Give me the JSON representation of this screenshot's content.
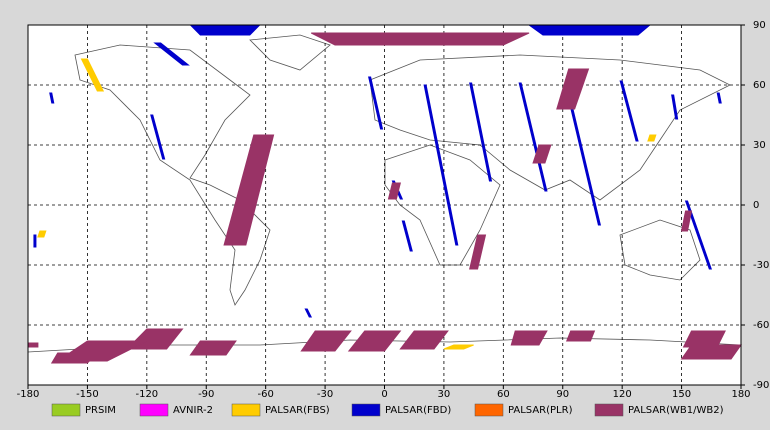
{
  "chart_data": {
    "type": "swath_map",
    "xlim": [
      -180,
      180
    ],
    "ylim": [
      -90,
      90
    ],
    "xticks": [
      -180,
      -150,
      -120,
      -90,
      -60,
      -30,
      0,
      30,
      60,
      90,
      120,
      150,
      180
    ],
    "yticks": [
      -90,
      -60,
      -30,
      0,
      30,
      60,
      90
    ],
    "grid": true,
    "series": [
      {
        "name": "PRSIM",
        "color": "#99cc22",
        "swaths": []
      },
      {
        "name": "AVNIR-2",
        "color": "#ff00ff",
        "swaths": []
      },
      {
        "name": "PALSAR(FBS)",
        "color": "#ffcc00",
        "swaths": [
          {
            "lon": [
              -153,
              -150,
              -142,
              -145
            ],
            "lat": [
              73,
              73,
              57,
              57
            ]
          },
          {
            "lon": [
              -174,
              -171,
              -172,
              -175
            ],
            "lat": [
              -13,
              -13,
              -16,
              -16
            ]
          },
          {
            "lon": [
              35,
              45,
              40,
              30
            ],
            "lat": [
              -70,
              -70,
              -72,
              -72
            ]
          },
          {
            "lon": [
              134,
              137,
              136,
              133
            ],
            "lat": [
              35,
              35,
              32,
              32
            ]
          }
        ]
      },
      {
        "name": "PALSAR(FBD)",
        "color": "#0000cc",
        "swaths": [
          {
            "lon": [
              -98,
              -63,
              -68,
              -93
            ],
            "lat": [
              90,
              90,
              85,
              85
            ]
          },
          {
            "lon": [
              73,
              134,
              128,
              80
            ],
            "lat": [
              90,
              90,
              85,
              85
            ]
          },
          {
            "lon": [
              -116,
              -113,
              -99,
              -102
            ],
            "lat": [
              81,
              81,
              70,
              70
            ]
          },
          {
            "lon": [
              -169,
              -168,
              -167,
              -168
            ],
            "lat": [
              56,
              56,
              51,
              51
            ]
          },
          {
            "lon": [
              -118,
              -117,
              -111,
              -112
            ],
            "lat": [
              45,
              45,
              23,
              23
            ]
          },
          {
            "lon": [
              -8,
              -7,
              -1,
              -2
            ],
            "lat": [
              64,
              64,
              38,
              38
            ]
          },
          {
            "lon": [
              4,
              5,
              9,
              8
            ],
            "lat": [
              12,
              12,
              3,
              3
            ]
          },
          {
            "lon": [
              20,
              21,
              37,
              36
            ],
            "lat": [
              60,
              60,
              -20,
              -20
            ]
          },
          {
            "lon": [
              43,
              44,
              54,
              53
            ],
            "lat": [
              61,
              61,
              12,
              12
            ]
          },
          {
            "lon": [
              68,
              69,
              82,
              81
            ],
            "lat": [
              61,
              61,
              7,
              7
            ]
          },
          {
            "lon": [
              92,
              93,
              109,
              108
            ],
            "lat": [
              57,
              57,
              -10,
              -10
            ]
          },
          {
            "lon": [
              119,
              120,
              128,
              127
            ],
            "lat": [
              62,
              62,
              32,
              32
            ]
          },
          {
            "lon": [
              145,
              146,
              148,
              147
            ],
            "lat": [
              55,
              55,
              43,
              43
            ]
          },
          {
            "lon": [
              152,
              153,
              165,
              164
            ],
            "lat": [
              2,
              2,
              -32,
              -32
            ]
          },
          {
            "lon": [
              9,
              10,
              14,
              13
            ],
            "lat": [
              -8,
              -8,
              -23,
              -23
            ]
          },
          {
            "lon": [
              -177,
              -176,
              -176,
              -177
            ],
            "lat": [
              -15,
              -15,
              -21,
              -21
            ]
          },
          {
            "lon": [
              -40,
              -39,
              -37,
              -38
            ],
            "lat": [
              -52,
              -52,
              -56,
              -56
            ]
          },
          {
            "lon": [
              168,
              169,
              170,
              169
            ],
            "lat": [
              56,
              56,
              51,
              51
            ]
          }
        ]
      },
      {
        "name": "PALSAR(PLR)",
        "color": "#ff6600",
        "swaths": []
      },
      {
        "name": "PALSAR(WB1/WB2)",
        "color": "#993366",
        "swaths": [
          {
            "lon": [
              -37,
              73,
              60,
              -25
            ],
            "lat": [
              86,
              86,
              80,
              80
            ]
          },
          {
            "lon": [
              -81,
              -70,
              -56,
              -66
            ],
            "lat": [
              -20,
              -20,
              35,
              35
            ]
          },
          {
            "lon": [
              87,
              96,
              103,
              93
            ],
            "lat": [
              48,
              48,
              68,
              68
            ]
          },
          {
            "lon": [
              78,
              84,
              81,
              75
            ],
            "lat": [
              30,
              30,
              21,
              21
            ]
          },
          {
            "lon": [
              47,
              51,
              47,
              43
            ],
            "lat": [
              -15,
              -15,
              -32,
              -32
            ]
          },
          {
            "lon": [
              152,
              155,
              153,
              150
            ],
            "lat": [
              -3,
              -3,
              -13,
              -13
            ]
          },
          {
            "lon": [
              4,
              8,
              6,
              2
            ],
            "lat": [
              11,
              11,
              3,
              3
            ]
          },
          {
            "lon": [
              -120,
              -102,
              -110,
              -130
            ],
            "lat": [
              -62,
              -62,
              -72,
              -72
            ]
          },
          {
            "lon": [
              -93,
              -75,
              -80,
              -98
            ],
            "lat": [
              -68,
              -68,
              -75,
              -75
            ]
          },
          {
            "lon": [
              -150,
              -120,
              -140,
              -165
            ],
            "lat": [
              -68,
              -68,
              -78,
              -78
            ]
          },
          {
            "lon": [
              -165,
              -145,
              -150,
              -168
            ],
            "lat": [
              -74,
              -74,
              -79,
              -79
            ]
          },
          {
            "lon": [
              -35,
              -17,
              -25,
              -42
            ],
            "lat": [
              -63,
              -63,
              -73,
              -73
            ]
          },
          {
            "lon": [
              -10,
              8,
              0,
              -18
            ],
            "lat": [
              -63,
              -63,
              -73,
              -73
            ]
          },
          {
            "lon": [
              15,
              32,
              25,
              8
            ],
            "lat": [
              -63,
              -63,
              -72,
              -72
            ]
          },
          {
            "lon": [
              66,
              82,
              78,
              64
            ],
            "lat": [
              -63,
              -63,
              -70,
              -70
            ]
          },
          {
            "lon": [
              94,
              106,
              104,
              92
            ],
            "lat": [
              -63,
              -63,
              -68,
              -68
            ]
          },
          {
            "lon": [
              155,
              172,
              168,
              151
            ],
            "lat": [
              -63,
              -63,
              -71,
              -71
            ]
          },
          {
            "lon": [
              155,
              180,
              175,
              150
            ],
            "lat": [
              -70,
              -70,
              -77,
              -77
            ]
          },
          {
            "lon": [
              -180,
              -175,
              -175,
              -180
            ],
            "lat": [
              -69,
              -69,
              -71,
              -71
            ]
          }
        ]
      }
    ]
  }
}
